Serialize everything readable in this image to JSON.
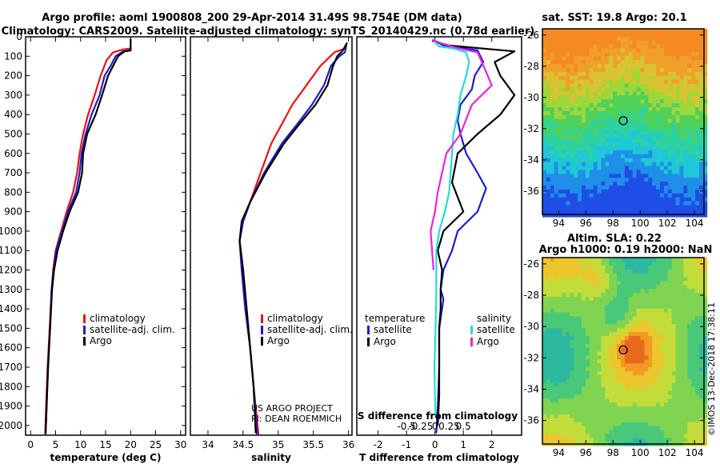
{
  "header": {
    "line1": "Argo profile: aoml 1900808_200 29-Apr-2014 31.49S 98.754E (DM data)",
    "line2": "Climatology: CARS2009. Satellite-adjusted climatology: synTS_20140429.nc (0.78d earlier)"
  },
  "credit": {
    "line1": "US ARGO PROJECT",
    "line2": "PI: DEAN ROEMMICH"
  },
  "stamp": "©IMOS 13-Dec-2018 17:38:11",
  "colors": {
    "climatology": "#ee1111",
    "satellite": "#1a1ad8",
    "argo": "#000000",
    "sat_salinity": "#22dddd",
    "argo_salinity": "#ee22dd"
  },
  "chart_data": [
    {
      "id": "temperature",
      "type": "line",
      "xlabel": "temperature (deg C)",
      "ylabel": "",
      "xlim": [
        -1,
        31
      ],
      "ylim": [
        2050,
        0
      ],
      "xticks": [
        "0",
        "5",
        "10",
        "15",
        "20",
        "25",
        "30"
      ],
      "xtick_values": [
        0,
        5,
        10,
        15,
        20,
        25,
        30
      ],
      "yticks": [
        "0",
        "100",
        "200",
        "300",
        "400",
        "500",
        "600",
        "700",
        "800",
        "900",
        "1000",
        "1100",
        "1200",
        "1300",
        "1400",
        "1500",
        "1600",
        "1700",
        "1800",
        "1900",
        "2000"
      ],
      "ytick_values": [
        0,
        100,
        200,
        300,
        400,
        500,
        600,
        700,
        800,
        900,
        1000,
        1100,
        1200,
        1300,
        1400,
        1500,
        1600,
        1700,
        1800,
        1900,
        2000
      ],
      "legend": [
        "climatology",
        "satellite-adj. clim.",
        "Argo"
      ],
      "series": [
        {
          "name": "climatology",
          "color": "#ee1111",
          "points": [
            [
              20,
              60
            ],
            [
              18.5,
              65
            ],
            [
              16.5,
              80
            ],
            [
              15.2,
              120
            ],
            [
              14,
              200
            ],
            [
              12.8,
              300
            ],
            [
              11.5,
              400
            ],
            [
              10.5,
              500
            ],
            [
              9.8,
              600
            ],
            [
              9.3,
              700
            ],
            [
              8.5,
              800
            ],
            [
              7.2,
              900
            ],
            [
              6.1,
              1000
            ],
            [
              5,
              1100
            ],
            [
              4.5,
              1200
            ],
            [
              4.2,
              1300
            ],
            [
              3.8,
              1500
            ],
            [
              3.4,
              1700
            ],
            [
              3.1,
              1900
            ],
            [
              2.9,
              2050
            ]
          ]
        },
        {
          "name": "satellite-adj. clim.",
          "color": "#1a1ad8",
          "points": [
            [
              20,
              50
            ],
            [
              20,
              70
            ],
            [
              18.5,
              75
            ],
            [
              17,
              100
            ],
            [
              16,
              150
            ],
            [
              14.8,
              200
            ],
            [
              13.8,
              300
            ],
            [
              12.2,
              400
            ],
            [
              11,
              500
            ],
            [
              10.2,
              600
            ],
            [
              9.8,
              700
            ],
            [
              9.1,
              800
            ],
            [
              7.5,
              900
            ],
            [
              6.3,
              1000
            ],
            [
              5.1,
              1100
            ],
            [
              4.6,
              1200
            ],
            [
              4.2,
              1300
            ],
            [
              3.9,
              1500
            ],
            [
              3.5,
              1700
            ],
            [
              3.2,
              1900
            ],
            [
              3,
              2050
            ]
          ]
        },
        {
          "name": "Argo",
          "color": "#000000",
          "points": [
            [
              20,
              10
            ],
            [
              20,
              70
            ],
            [
              18.8,
              75
            ],
            [
              17.5,
              100
            ],
            [
              16.5,
              150
            ],
            [
              15.5,
              200
            ],
            [
              14.3,
              300
            ],
            [
              13,
              400
            ],
            [
              11.3,
              500
            ],
            [
              10.5,
              600
            ],
            [
              10.3,
              700
            ],
            [
              9.5,
              800
            ],
            [
              7.8,
              900
            ],
            [
              6.5,
              1000
            ],
            [
              5.4,
              1100
            ],
            [
              4.7,
              1200
            ],
            [
              4.3,
              1300
            ],
            [
              3.9,
              1500
            ],
            [
              3.5,
              1700
            ],
            [
              3.2,
              1900
            ],
            [
              3,
              2040
            ]
          ]
        }
      ]
    },
    {
      "id": "salinity",
      "type": "line",
      "xlabel": "salinity",
      "xlim": [
        33.75,
        36.05
      ],
      "ylim": [
        2050,
        0
      ],
      "xticks": [
        "34",
        "34.5",
        "35",
        "35.5",
        "36"
      ],
      "xtick_values": [
        34,
        34.5,
        35,
        35.5,
        36
      ],
      "legend": [
        "climatology",
        "satellite-adj. clim.",
        "Argo"
      ],
      "series": [
        {
          "name": "climatology",
          "color": "#ee1111",
          "points": [
            [
              35.95,
              60
            ],
            [
              35.8,
              80
            ],
            [
              35.6,
              150
            ],
            [
              35.4,
              250
            ],
            [
              35.2,
              350
            ],
            [
              35.05,
              450
            ],
            [
              34.9,
              550
            ],
            [
              34.75,
              700
            ],
            [
              34.6,
              850
            ],
            [
              34.5,
              950
            ],
            [
              34.45,
              1050
            ],
            [
              34.5,
              1200
            ],
            [
              34.55,
              1400
            ],
            [
              34.6,
              1600
            ],
            [
              34.65,
              1800
            ],
            [
              34.72,
              2050
            ]
          ]
        },
        {
          "name": "satellite-adj. clim.",
          "color": "#1a1ad8",
          "points": [
            [
              35.97,
              40
            ],
            [
              35.95,
              80
            ],
            [
              35.87,
              100
            ],
            [
              35.75,
              150
            ],
            [
              35.65,
              250
            ],
            [
              35.48,
              350
            ],
            [
              35.27,
              450
            ],
            [
              35.05,
              550
            ],
            [
              34.8,
              700
            ],
            [
              34.6,
              850
            ],
            [
              34.5,
              950
            ],
            [
              34.45,
              1050
            ],
            [
              34.48,
              1200
            ],
            [
              34.53,
              1400
            ],
            [
              34.6,
              1600
            ],
            [
              34.65,
              1800
            ],
            [
              34.7,
              2050
            ]
          ]
        },
        {
          "name": "Argo",
          "color": "#000000",
          "points": [
            [
              35.98,
              30
            ],
            [
              35.92,
              70
            ],
            [
              35.84,
              100
            ],
            [
              35.78,
              150
            ],
            [
              35.7,
              250
            ],
            [
              35.53,
              350
            ],
            [
              35.3,
              450
            ],
            [
              35.08,
              550
            ],
            [
              34.82,
              700
            ],
            [
              34.6,
              850
            ],
            [
              34.48,
              950
            ],
            [
              34.45,
              1050
            ],
            [
              34.5,
              1200
            ],
            [
              34.55,
              1400
            ],
            [
              34.6,
              1600
            ],
            [
              34.65,
              1800
            ],
            [
              34.68,
              2040
            ]
          ]
        }
      ]
    },
    {
      "id": "differences",
      "type": "line",
      "xlabel": "T difference from climatology",
      "xlabel_top": "S difference from climatology",
      "xlim": [
        -2.75,
        3.05
      ],
      "ylim": [
        2050,
        0
      ],
      "xticks": [
        "-2",
        "-1",
        "0",
        "1",
        "2"
      ],
      "xtick_values": [
        -2,
        -1,
        0,
        1,
        2
      ],
      "xticks_top": [
        "-0.5",
        "-0.25",
        "0",
        "0.25",
        "0.5"
      ],
      "legend_left_title": "temperature",
      "legend_right_title": "salinity",
      "legend_left": [
        "satellite",
        "Argo"
      ],
      "legend_right": [
        "satellite",
        "Argo"
      ],
      "series": [
        {
          "name": "satellite (temperature)",
          "color": "#1a1ad8",
          "points": [
            [
              0,
              20
            ],
            [
              0.3,
              45
            ],
            [
              1.5,
              70
            ],
            [
              1.7,
              130
            ],
            [
              1.4,
              200
            ],
            [
              1.3,
              270
            ],
            [
              0.9,
              350
            ],
            [
              0.8,
              430
            ],
            [
              0.9,
              500
            ],
            [
              1.1,
              600
            ],
            [
              1.5,
              700
            ],
            [
              1.8,
              780
            ],
            [
              1.5,
              900
            ],
            [
              0.8,
              1000
            ],
            [
              0.6,
              1100
            ],
            [
              0.3,
              1200
            ],
            [
              0.2,
              1300
            ],
            [
              0.3,
              1350
            ],
            [
              0.15,
              1500
            ],
            [
              0.15,
              1700
            ],
            [
              0.1,
              1900
            ],
            [
              0.05,
              2040
            ]
          ]
        },
        {
          "name": "Argo (temperature)",
          "color": "#000000",
          "points": [
            [
              -0.1,
              20
            ],
            [
              0.5,
              45
            ],
            [
              2.8,
              75
            ],
            [
              2.1,
              130
            ],
            [
              2.3,
              200
            ],
            [
              2.8,
              300
            ],
            [
              2.3,
              400
            ],
            [
              1.5,
              500
            ],
            [
              0.8,
              600
            ],
            [
              0.6,
              750
            ],
            [
              1.0,
              900
            ],
            [
              0.3,
              1000
            ],
            [
              0.1,
              1100
            ],
            [
              0.25,
              1200
            ],
            [
              0.2,
              1300
            ],
            [
              0.2,
              1400
            ],
            [
              0.15,
              1500
            ],
            [
              0.15,
              1700
            ],
            [
              0.15,
              1850
            ],
            [
              0.1,
              2000
            ]
          ]
        },
        {
          "name": "satellite (salinity)",
          "color": "#22dddd",
          "points": [
            [
              -0.05,
              20
            ],
            [
              0.15,
              50
            ],
            [
              0.65,
              60
            ],
            [
              1.1,
              80
            ],
            [
              1.2,
              130
            ],
            [
              1.1,
              200
            ],
            [
              0.9,
              300
            ],
            [
              0.8,
              400
            ],
            [
              0.65,
              500
            ],
            [
              0.6,
              600
            ],
            [
              0.55,
              700
            ],
            [
              0.5,
              800
            ],
            [
              0.35,
              900
            ],
            [
              0.15,
              1000
            ],
            [
              0.05,
              1100
            ],
            [
              0.05,
              1300
            ],
            [
              0.02,
              1500
            ],
            [
              -0.02,
              1700
            ],
            [
              0.0,
              1850
            ],
            [
              0.02,
              1950
            ]
          ]
        },
        {
          "name": "Argo (salinity)",
          "color": "#ee22dd",
          "points": [
            [
              -0.1,
              15
            ],
            [
              0.25,
              35
            ],
            [
              0.85,
              60
            ],
            [
              1.5,
              80
            ],
            [
              1.8,
              180
            ],
            [
              2.0,
              250
            ],
            [
              1.3,
              350
            ],
            [
              0.9,
              500
            ],
            [
              0.4,
              600
            ],
            [
              0.1,
              800
            ],
            [
              0.0,
              900
            ],
            [
              -0.15,
              1000
            ],
            [
              -0.1,
              1100
            ],
            [
              -0.05,
              1200
            ]
          ]
        }
      ]
    },
    {
      "id": "sst-map",
      "type": "heatmap",
      "title": "sat. SST: 19.8 Argo: 20.1",
      "xlim": [
        92.8,
        104.7
      ],
      "ylim": [
        -37.5,
        -25.6
      ],
      "xticks": [
        "94",
        "96",
        "98",
        "100",
        "102",
        "104"
      ],
      "xtick_values": [
        94,
        96,
        98,
        100,
        102,
        104
      ],
      "yticks": [
        "-26",
        "-28",
        "-30",
        "-32",
        "-34",
        "-36"
      ],
      "ytick_values": [
        -26,
        -28,
        -30,
        -32,
        -34,
        -36
      ],
      "float_position": [
        98.754,
        -31.49
      ]
    },
    {
      "id": "sla-map",
      "type": "heatmap",
      "title": "Altim. SLA: 0.22",
      "subtitle": "Argo h1000: 0.19 h2000: NaN",
      "xlim": [
        92.8,
        104.7
      ],
      "ylim": [
        -37.5,
        -25.6
      ],
      "xticks": [
        "94",
        "96",
        "98",
        "100",
        "102",
        "104"
      ],
      "xtick_values": [
        94,
        96,
        98,
        100,
        102,
        104
      ],
      "yticks": [
        "-26",
        "-28",
        "-30",
        "-32",
        "-34",
        "-36"
      ],
      "ytick_values": [
        -26,
        -28,
        -30,
        -32,
        -34,
        -36
      ],
      "float_position": [
        98.754,
        -31.49
      ]
    }
  ]
}
